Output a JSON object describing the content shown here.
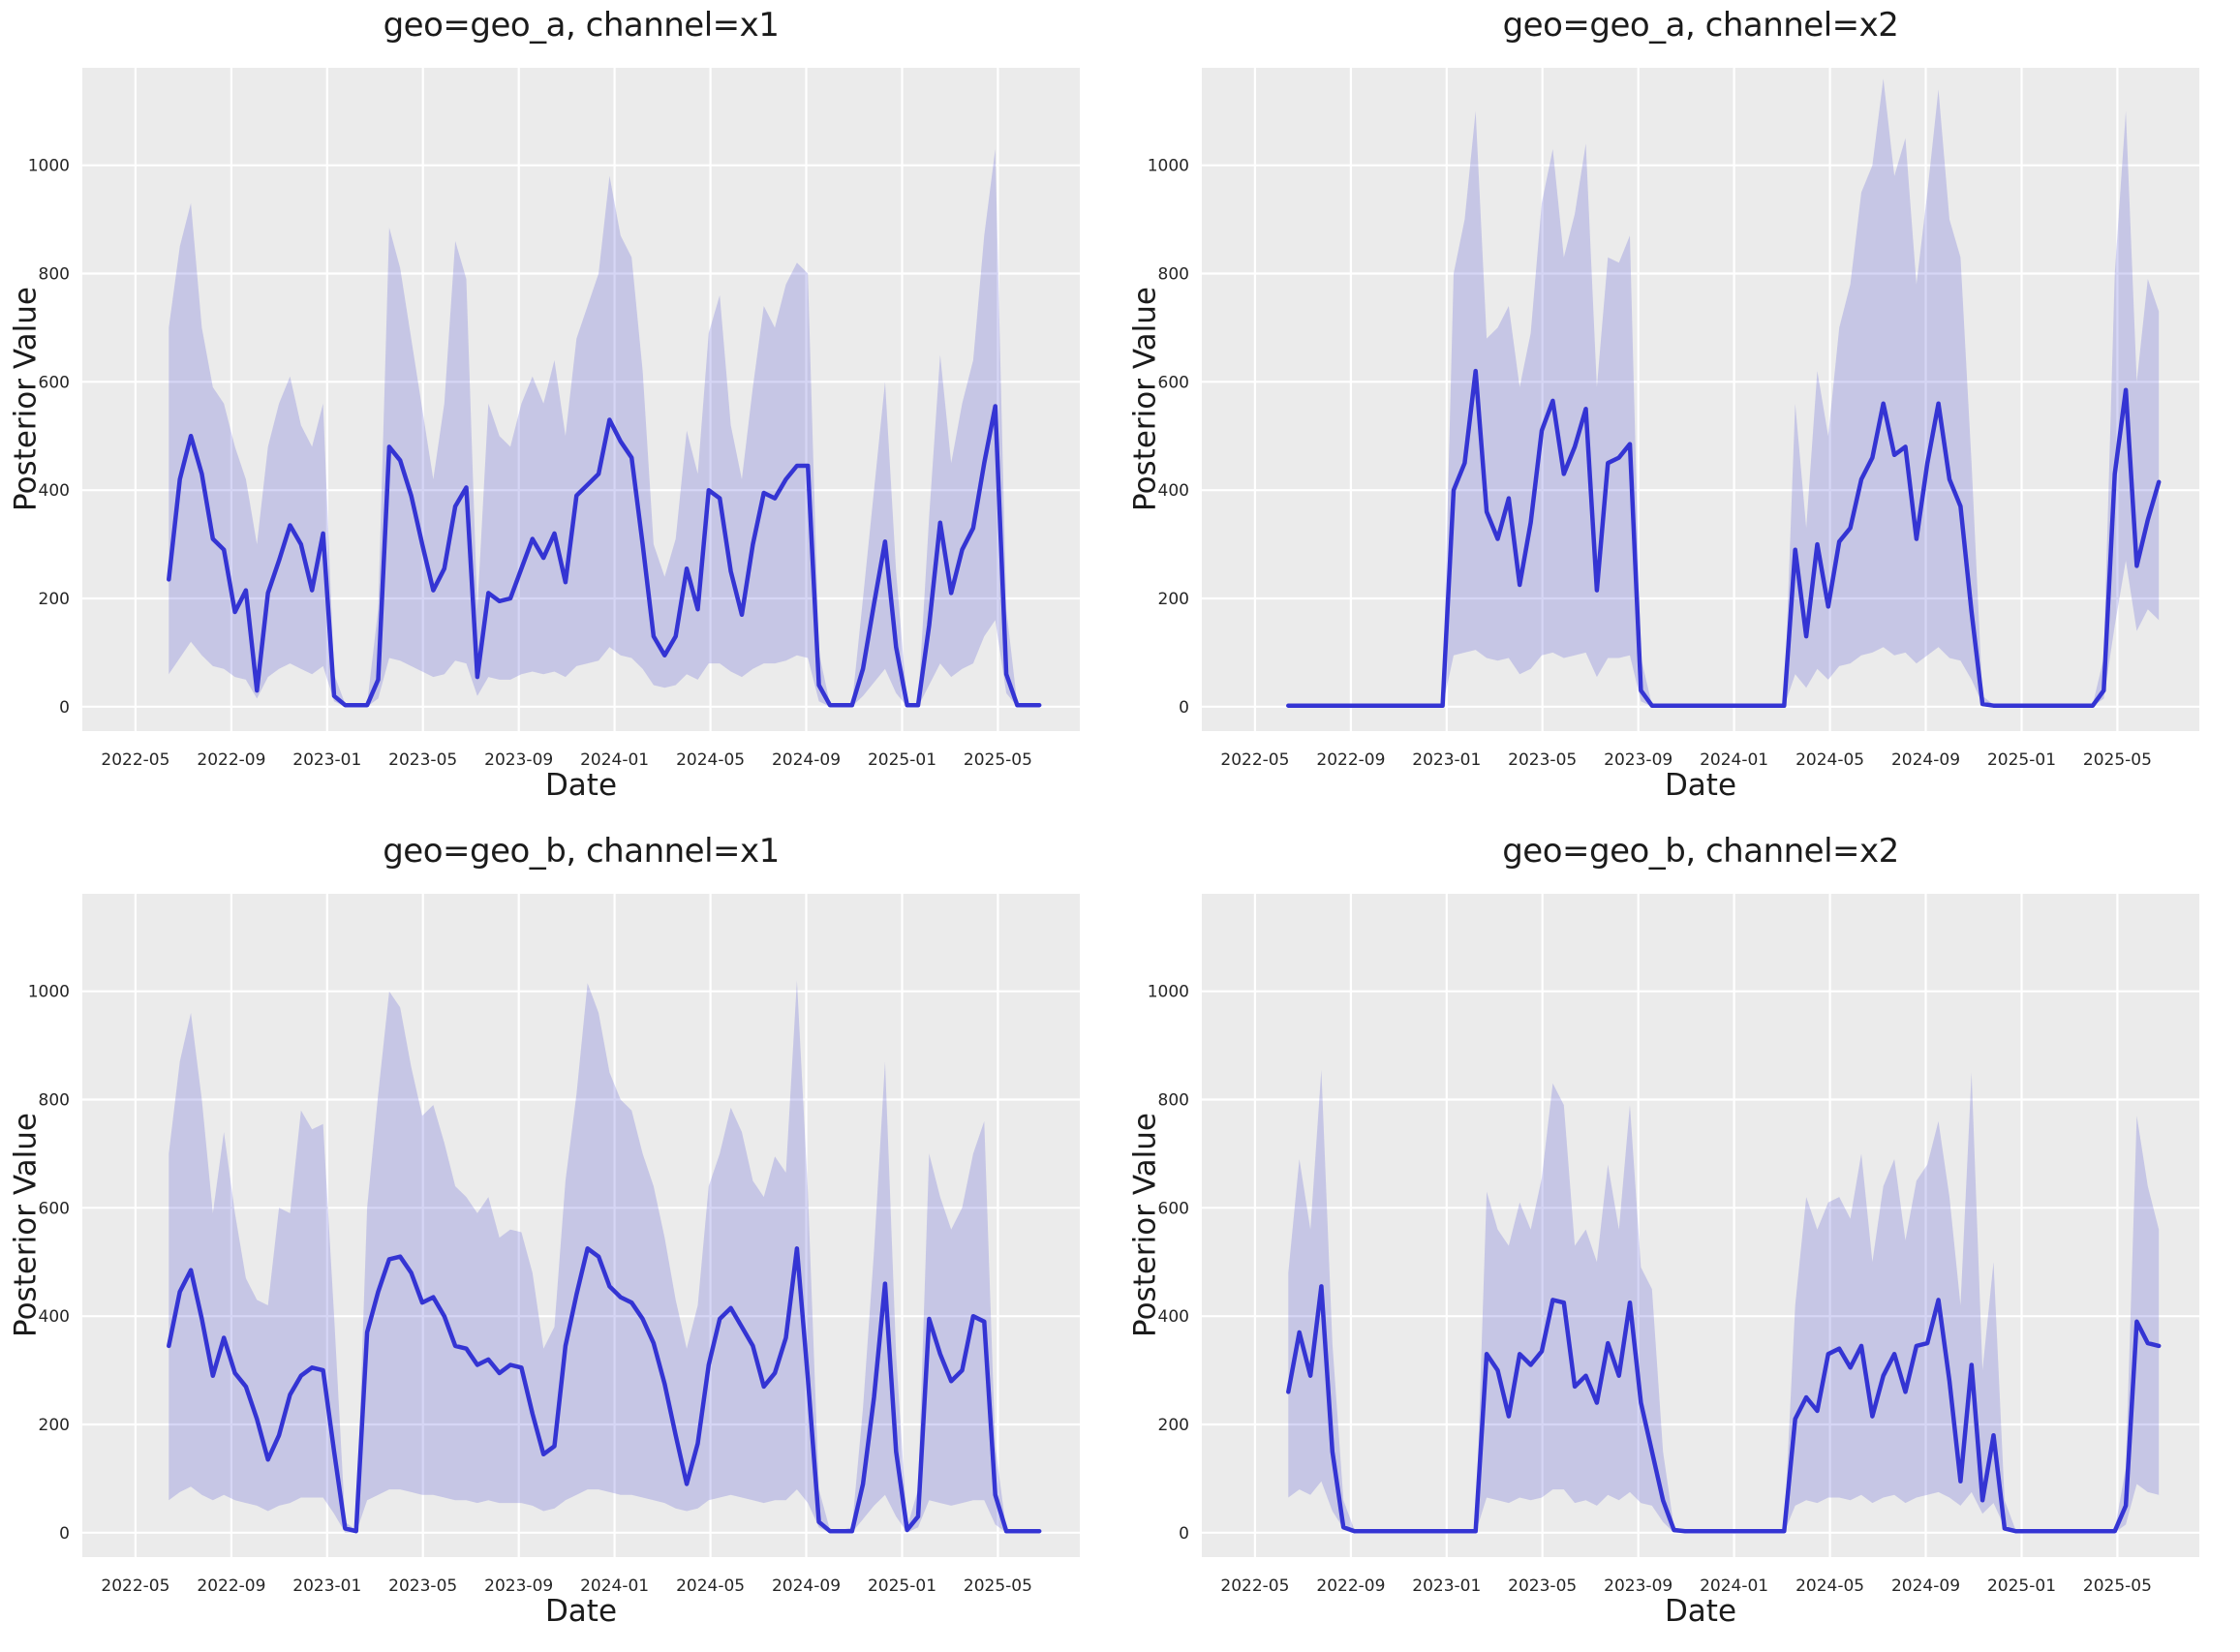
{
  "figure": {
    "background": "#ffffff",
    "plot_background": "#ebebeb",
    "grid_color": "#ffffff",
    "grid_width": 2.2,
    "line_color": "#3434d3",
    "line_width": 4.5,
    "band_color": "rgba(60,61,210,0.21)",
    "tick_color": "#262626",
    "label_color": "#1b1b1b",
    "tick_font_size": 17
  },
  "axes": {
    "xlabel": "Date",
    "ylabel": "Posterior Value",
    "x_ticks": [
      "2022-05",
      "2022-09",
      "2023-01",
      "2023-05",
      "2023-09",
      "2024-01",
      "2024-05",
      "2024-09",
      "2025-01",
      "2025-05"
    ],
    "x_tick_months": [
      4,
      8,
      12,
      16,
      20,
      24,
      28,
      32,
      36,
      40
    ],
    "y_ticks": [
      0,
      200,
      400,
      600,
      800,
      1000
    ],
    "x_domain": [
      1.78,
      43.42
    ],
    "y_domain": [
      -45,
      1180
    ],
    "x_start_month": 5.39,
    "x_step_month": 0.46,
    "x_unit_note": "months since 2022-01, biweekly samples",
    "grid": true,
    "legend": "none"
  },
  "chart_data": [
    {
      "type": "line",
      "title": "geo=geo_a, channel=x1",
      "geo": "geo_a",
      "channel": "x1",
      "xlabel": "Date",
      "ylabel": "Posterior Value",
      "mean": [
        235,
        420,
        500,
        430,
        310,
        290,
        175,
        215,
        30,
        210,
        270,
        335,
        300,
        215,
        320,
        20,
        3,
        3,
        3,
        50,
        480,
        455,
        390,
        300,
        215,
        255,
        370,
        405,
        55,
        210,
        195,
        200,
        255,
        310,
        275,
        320,
        230,
        390,
        410,
        430,
        530,
        490,
        460,
        300,
        130,
        95,
        130,
        255,
        180,
        400,
        385,
        250,
        170,
        300,
        395,
        385,
        420,
        445,
        445,
        40,
        3,
        3,
        3,
        70,
        190,
        305,
        110,
        3,
        3,
        150,
        340,
        210,
        290,
        330,
        450,
        555,
        60,
        3,
        3,
        3
      ],
      "upper": [
        700,
        850,
        930,
        700,
        590,
        560,
        480,
        420,
        300,
        480,
        560,
        610,
        520,
        480,
        560,
        60,
        5,
        5,
        5,
        180,
        885,
        810,
        680,
        550,
        420,
        560,
        860,
        790,
        180,
        560,
        500,
        480,
        560,
        610,
        560,
        640,
        500,
        680,
        740,
        800,
        980,
        870,
        830,
        620,
        300,
        240,
        310,
        510,
        430,
        690,
        760,
        520,
        420,
        590,
        740,
        700,
        780,
        820,
        800,
        100,
        5,
        5,
        5,
        200,
        400,
        600,
        250,
        5,
        5,
        350,
        650,
        450,
        560,
        640,
        870,
        1030,
        180,
        5,
        5,
        5
      ],
      "lower": [
        60,
        90,
        120,
        95,
        75,
        70,
        55,
        50,
        15,
        55,
        70,
        80,
        70,
        60,
        75,
        10,
        0,
        0,
        0,
        15,
        90,
        85,
        75,
        65,
        55,
        60,
        85,
        80,
        20,
        55,
        50,
        50,
        60,
        65,
        60,
        65,
        55,
        75,
        80,
        85,
        110,
        95,
        90,
        70,
        40,
        35,
        40,
        60,
        50,
        80,
        80,
        65,
        55,
        70,
        80,
        80,
        85,
        95,
        90,
        10,
        0,
        0,
        0,
        20,
        45,
        70,
        25,
        0,
        0,
        40,
        80,
        55,
        70,
        80,
        130,
        160,
        25,
        0,
        0,
        0
      ]
    },
    {
      "type": "line",
      "title": "geo=geo_a, channel=x2",
      "geo": "geo_a",
      "channel": "x2",
      "xlabel": "Date",
      "ylabel": "Posterior Value",
      "mean": [
        2,
        2,
        2,
        2,
        2,
        2,
        2,
        2,
        2,
        2,
        2,
        2,
        2,
        2,
        2,
        400,
        450,
        620,
        360,
        310,
        385,
        225,
        340,
        510,
        565,
        430,
        480,
        550,
        215,
        450,
        460,
        485,
        30,
        2,
        2,
        2,
        2,
        2,
        2,
        2,
        2,
        2,
        2,
        2,
        2,
        2,
        290,
        130,
        300,
        185,
        305,
        330,
        420,
        460,
        560,
        465,
        480,
        310,
        450,
        560,
        420,
        370,
        175,
        5,
        2,
        2,
        2,
        2,
        2,
        2,
        2,
        2,
        2,
        2,
        30,
        430,
        585,
        260,
        345,
        415
      ],
      "upper": [
        4,
        4,
        4,
        4,
        4,
        4,
        4,
        4,
        4,
        4,
        4,
        4,
        4,
        4,
        4,
        800,
        900,
        1100,
        680,
        700,
        740,
        590,
        690,
        930,
        1030,
        830,
        910,
        1040,
        590,
        830,
        820,
        870,
        90,
        4,
        4,
        4,
        4,
        4,
        4,
        4,
        4,
        4,
        4,
        4,
        4,
        4,
        560,
        330,
        620,
        500,
        700,
        780,
        950,
        1000,
        1160,
        980,
        1050,
        780,
        950,
        1140,
        900,
        830,
        450,
        20,
        4,
        4,
        4,
        4,
        4,
        4,
        4,
        4,
        4,
        4,
        90,
        800,
        1100,
        600,
        790,
        730
      ],
      "lower": [
        0,
        0,
        0,
        0,
        0,
        0,
        0,
        0,
        0,
        0,
        0,
        0,
        0,
        0,
        0,
        95,
        100,
        105,
        90,
        85,
        90,
        60,
        70,
        95,
        100,
        90,
        95,
        100,
        55,
        90,
        90,
        95,
        10,
        0,
        0,
        0,
        0,
        0,
        0,
        0,
        0,
        0,
        0,
        0,
        0,
        0,
        60,
        35,
        70,
        50,
        75,
        80,
        95,
        100,
        110,
        95,
        100,
        80,
        95,
        110,
        90,
        85,
        50,
        5,
        0,
        0,
        0,
        0,
        0,
        0,
        0,
        0,
        0,
        0,
        15,
        150,
        270,
        140,
        180,
        160
      ]
    },
    {
      "type": "line",
      "title": "geo=geo_b, channel=x1",
      "geo": "geo_b",
      "channel": "x1",
      "xlabel": "Date",
      "ylabel": "Posterior Value",
      "mean": [
        345,
        445,
        485,
        395,
        290,
        360,
        295,
        270,
        210,
        135,
        180,
        255,
        290,
        305,
        300,
        150,
        8,
        3,
        370,
        445,
        505,
        510,
        480,
        425,
        435,
        400,
        345,
        340,
        310,
        320,
        295,
        310,
        305,
        220,
        145,
        160,
        345,
        440,
        525,
        510,
        455,
        435,
        425,
        395,
        350,
        275,
        180,
        90,
        165,
        310,
        395,
        415,
        380,
        345,
        270,
        295,
        360,
        525,
        285,
        20,
        3,
        3,
        3,
        90,
        250,
        460,
        150,
        5,
        30,
        395,
        330,
        280,
        300,
        400,
        390,
        70,
        3,
        3,
        3,
        3
      ],
      "upper": [
        700,
        870,
        960,
        800,
        590,
        740,
        590,
        470,
        430,
        420,
        600,
        590,
        780,
        745,
        755,
        400,
        20,
        5,
        600,
        810,
        1000,
        970,
        860,
        770,
        790,
        720,
        640,
        620,
        590,
        620,
        545,
        560,
        555,
        480,
        340,
        380,
        650,
        810,
        1015,
        960,
        850,
        800,
        780,
        700,
        640,
        545,
        430,
        340,
        420,
        640,
        700,
        785,
        740,
        650,
        620,
        695,
        665,
        1020,
        630,
        80,
        5,
        5,
        10,
        230,
        520,
        870,
        330,
        10,
        80,
        700,
        620,
        560,
        600,
        700,
        760,
        160,
        5,
        5,
        5,
        5
      ],
      "lower": [
        60,
        75,
        85,
        70,
        60,
        70,
        60,
        55,
        50,
        40,
        50,
        55,
        65,
        65,
        65,
        35,
        0,
        0,
        60,
        70,
        80,
        80,
        75,
        70,
        70,
        65,
        60,
        60,
        55,
        60,
        55,
        55,
        55,
        50,
        40,
        45,
        60,
        70,
        80,
        80,
        75,
        70,
        70,
        65,
        60,
        55,
        45,
        40,
        45,
        60,
        65,
        70,
        65,
        60,
        55,
        60,
        60,
        80,
        55,
        10,
        0,
        0,
        0,
        25,
        50,
        70,
        30,
        0,
        10,
        60,
        55,
        50,
        55,
        60,
        60,
        15,
        0,
        0,
        0,
        0
      ]
    },
    {
      "type": "line",
      "title": "geo=geo_b, channel=x2",
      "geo": "geo_b",
      "channel": "x2",
      "xlabel": "Date",
      "ylabel": "Posterior Value",
      "mean": [
        260,
        370,
        290,
        455,
        150,
        10,
        3,
        3,
        3,
        3,
        3,
        3,
        3,
        3,
        3,
        3,
        3,
        3,
        330,
        300,
        215,
        330,
        310,
        335,
        430,
        425,
        270,
        290,
        240,
        350,
        290,
        425,
        240,
        150,
        60,
        5,
        3,
        3,
        3,
        3,
        3,
        3,
        3,
        3,
        3,
        3,
        210,
        250,
        225,
        330,
        340,
        305,
        345,
        215,
        290,
        330,
        260,
        345,
        350,
        430,
        280,
        95,
        310,
        60,
        180,
        8,
        3,
        3,
        3,
        3,
        3,
        3,
        3,
        3,
        3,
        3,
        50,
        390,
        350,
        345
      ],
      "upper": [
        480,
        690,
        560,
        855,
        350,
        60,
        5,
        5,
        5,
        5,
        5,
        5,
        5,
        5,
        5,
        5,
        5,
        5,
        630,
        560,
        530,
        610,
        560,
        655,
        830,
        790,
        530,
        560,
        500,
        680,
        560,
        790,
        490,
        450,
        150,
        10,
        5,
        5,
        5,
        5,
        5,
        5,
        5,
        5,
        5,
        5,
        420,
        620,
        560,
        610,
        620,
        580,
        700,
        500,
        640,
        690,
        540,
        650,
        680,
        760,
        620,
        420,
        850,
        300,
        500,
        60,
        5,
        5,
        5,
        5,
        5,
        5,
        5,
        5,
        5,
        5,
        120,
        770,
        640,
        560
      ],
      "lower": [
        65,
        80,
        70,
        95,
        40,
        8,
        0,
        0,
        0,
        0,
        0,
        0,
        0,
        0,
        0,
        0,
        0,
        0,
        65,
        60,
        55,
        65,
        60,
        65,
        80,
        80,
        55,
        60,
        50,
        70,
        60,
        75,
        55,
        50,
        20,
        0,
        0,
        0,
        0,
        0,
        0,
        0,
        0,
        0,
        0,
        0,
        50,
        60,
        55,
        65,
        65,
        60,
        70,
        55,
        65,
        70,
        55,
        65,
        70,
        75,
        65,
        50,
        75,
        35,
        55,
        10,
        0,
        0,
        0,
        0,
        0,
        0,
        0,
        0,
        0,
        0,
        15,
        90,
        75,
        70
      ]
    }
  ]
}
